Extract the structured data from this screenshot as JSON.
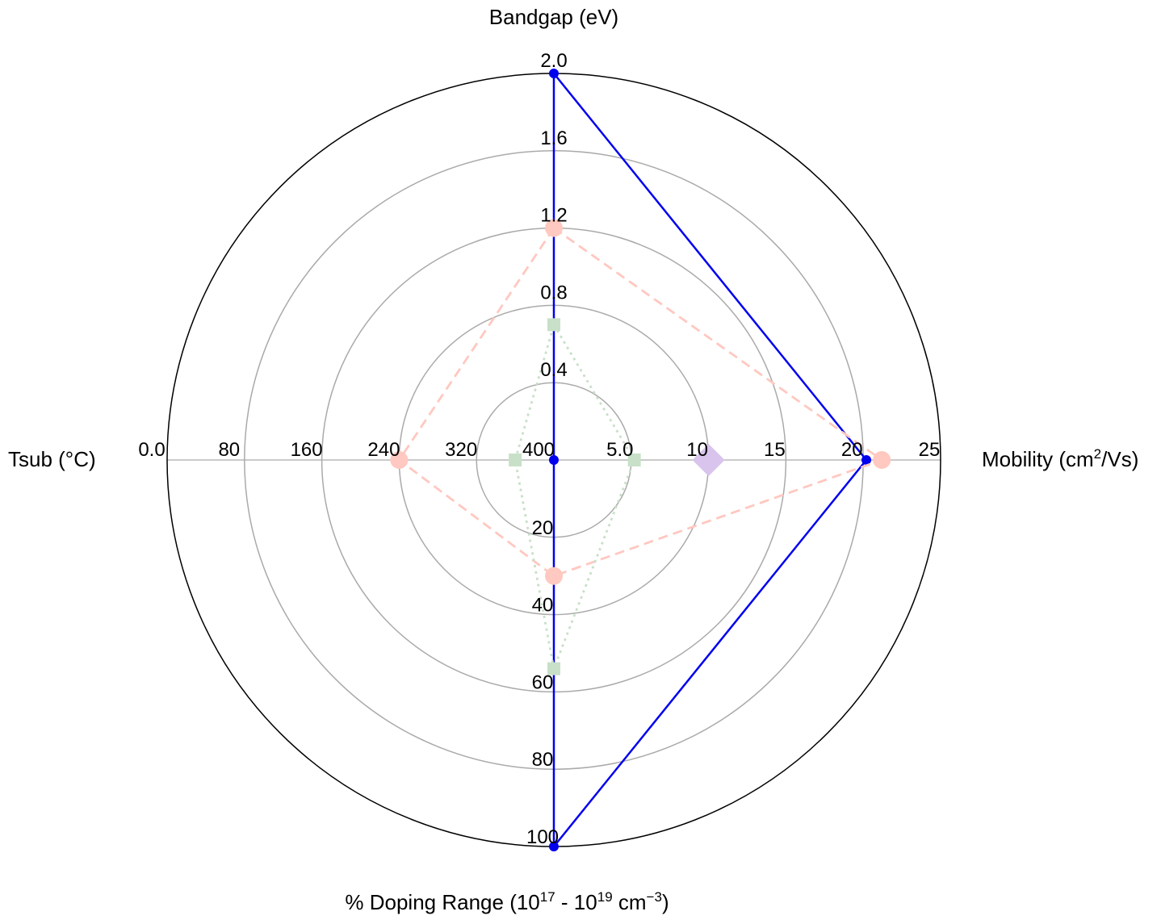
{
  "chart_data": {
    "type": "radar",
    "axes": [
      {
        "key": "bandgap",
        "label": "Bandgap (eV)",
        "range": [
          0,
          2.0
        ],
        "ticks": [
          "0.4",
          "0.8",
          "1.2",
          "1.6",
          "2.0"
        ],
        "tick_values": [
          0.4,
          0.8,
          1.2,
          1.6,
          2.0
        ]
      },
      {
        "key": "mobility",
        "label_main": "Mobility (cm",
        "label_sup": "2",
        "label_tail": "/Vs)",
        "range": [
          0,
          25
        ],
        "ticks": [
          "5.0",
          "10",
          "15",
          "20",
          "25"
        ],
        "tick_values": [
          5,
          10,
          15,
          20,
          25
        ]
      },
      {
        "key": "doping",
        "label_main": "% Doping Range (10",
        "label_sup1": "17",
        "label_mid": " - 10",
        "label_sup2": "19",
        "label_mid2": " cm",
        "label_sup3": "−3",
        "label_tail": ")",
        "range": [
          0,
          100
        ],
        "ticks": [
          "20",
          "40",
          "60",
          "80",
          "100"
        ],
        "tick_values": [
          20,
          40,
          60,
          80,
          100
        ]
      },
      {
        "key": "tsub",
        "label": "Tsub (°C)",
        "range": [
          400,
          0
        ],
        "ticks": [
          "400",
          "320",
          "240",
          "160",
          "80",
          "0.0"
        ],
        "tick_values": [
          400,
          320,
          240,
          160,
          80,
          0
        ]
      }
    ],
    "series": [
      {
        "color": "#0000ee",
        "line_style": "solid",
        "marker": "circle",
        "values": {
          "bandgap": 2.0,
          "mobility": 20.2,
          "doping": 100,
          "tsub": 400
        }
      },
      {
        "color": "#ffc8c0",
        "line_style": "dashed",
        "marker": "circle",
        "values": {
          "bandgap": 1.2,
          "mobility": 21.2,
          "doping": 30,
          "tsub": 240
        }
      },
      {
        "color": "#c8e0c8",
        "line_style": "dotted",
        "marker": "square",
        "values": {
          "bandgap": 0.7,
          "mobility": 5.2,
          "doping": 54,
          "tsub": 360
        }
      },
      {
        "color": "#d8c4ec",
        "line_style": "none",
        "marker": "diamond",
        "values": {
          "mobility": 10
        }
      }
    ],
    "grid": true,
    "grid_color": "#aaaaaa",
    "outer_ring_color": "#000000"
  }
}
